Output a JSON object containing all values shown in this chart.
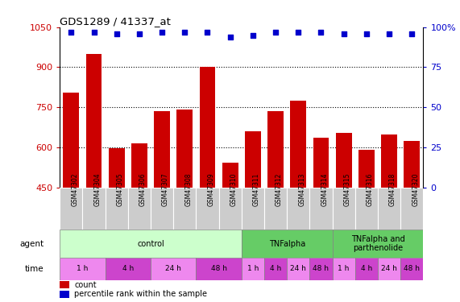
{
  "title": "GDS1289 / 41337_at",
  "samples": [
    "GSM47302",
    "GSM47304",
    "GSM47305",
    "GSM47306",
    "GSM47307",
    "GSM47308",
    "GSM47309",
    "GSM47310",
    "GSM47311",
    "GSM47312",
    "GSM47313",
    "GSM47314",
    "GSM47315",
    "GSM47316",
    "GSM47318",
    "GSM47320"
  ],
  "counts": [
    805,
    950,
    597,
    615,
    737,
    742,
    900,
    543,
    660,
    737,
    775,
    637,
    653,
    592,
    648,
    625
  ],
  "percentile_vals": [
    97,
    97,
    96,
    96,
    97,
    97,
    97,
    94,
    95,
    97,
    97,
    97,
    96,
    96,
    96,
    96
  ],
  "ylim_left": [
    450,
    1050
  ],
  "ylim_right": [
    0,
    100
  ],
  "bar_color": "#cc0000",
  "dot_color": "#0000cc",
  "background_color": "#ffffff",
  "yticks_left": [
    450,
    600,
    750,
    900,
    1050
  ],
  "yticks_right": [
    0,
    25,
    50,
    75,
    100
  ],
  "agent_groups": [
    {
      "label": "control",
      "start": 0,
      "end": 7,
      "color": "#ccffcc"
    },
    {
      "label": "TNFalpha",
      "start": 8,
      "end": 11,
      "color": "#66cc66"
    },
    {
      "label": "TNFalpha and\nparthenolide",
      "start": 12,
      "end": 15,
      "color": "#66cc66"
    }
  ],
  "time_groups": [
    {
      "label": "1 h",
      "start": 0,
      "end": 1,
      "color": "#ee88ee"
    },
    {
      "label": "4 h",
      "start": 2,
      "end": 3,
      "color": "#cc44cc"
    },
    {
      "label": "24 h",
      "start": 4,
      "end": 5,
      "color": "#ee88ee"
    },
    {
      "label": "48 h",
      "start": 6,
      "end": 7,
      "color": "#cc44cc"
    },
    {
      "label": "1 h",
      "start": 8,
      "end": 8,
      "color": "#ee88ee"
    },
    {
      "label": "4 h",
      "start": 9,
      "end": 9,
      "color": "#cc44cc"
    },
    {
      "label": "24 h",
      "start": 10,
      "end": 10,
      "color": "#ee88ee"
    },
    {
      "label": "48 h",
      "start": 11,
      "end": 11,
      "color": "#cc44cc"
    },
    {
      "label": "1 h",
      "start": 12,
      "end": 12,
      "color": "#ee88ee"
    },
    {
      "label": "4 h",
      "start": 13,
      "end": 13,
      "color": "#cc44cc"
    },
    {
      "label": "24 h",
      "start": 14,
      "end": 14,
      "color": "#ee88ee"
    },
    {
      "label": "48 h",
      "start": 15,
      "end": 15,
      "color": "#cc44cc"
    }
  ]
}
